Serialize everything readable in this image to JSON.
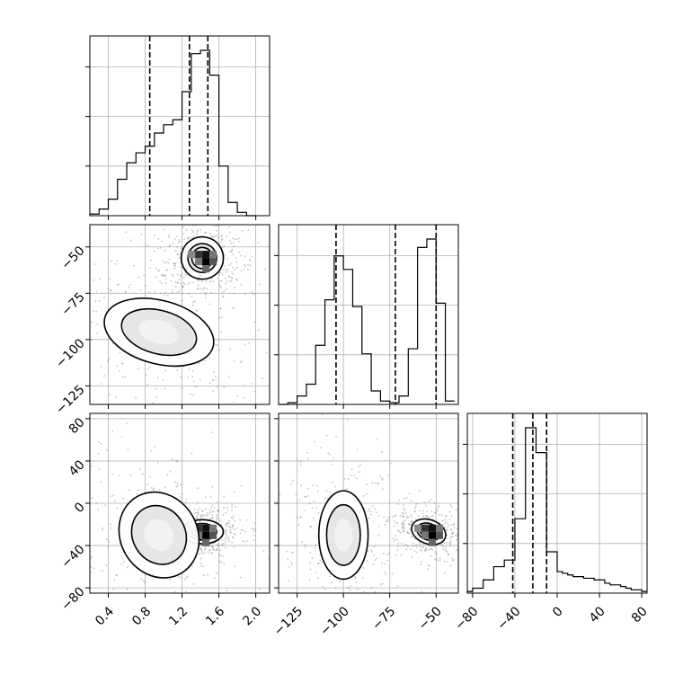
{
  "chart_data": {
    "type": "corner",
    "parameters": [
      {
        "ticks": [
          "0.4",
          "0.8",
          "1.2",
          "1.6",
          "2.0"
        ],
        "tick_values": [
          0.4,
          0.8,
          1.2,
          1.6,
          2.0
        ],
        "range": [
          0.2,
          2.15
        ]
      },
      {
        "ticks": [
          "−125",
          "−100",
          "−75",
          "−50"
        ],
        "tick_values": [
          -125,
          -100,
          -75,
          -50
        ],
        "range": [
          -135,
          -38
        ]
      },
      {
        "ticks": [
          "−80",
          "−40",
          "0",
          "40",
          "80"
        ],
        "tick_values": [
          -80,
          -40,
          0,
          40,
          80
        ],
        "range": [
          -85,
          85
        ]
      }
    ],
    "marginals": [
      {
        "parameter": 0,
        "bin_edges": [
          0.2,
          0.3,
          0.4,
          0.5,
          0.6,
          0.7,
          0.8,
          0.9,
          1.0,
          1.1,
          1.2,
          1.3,
          1.4,
          1.5,
          1.6,
          1.7,
          1.8,
          1.9,
          2.0
        ],
        "counts": [
          0.01,
          0.04,
          0.1,
          0.22,
          0.32,
          0.38,
          0.42,
          0.5,
          0.55,
          0.58,
          0.75,
          0.98,
          1.0,
          0.85,
          0.3,
          0.08,
          0.02,
          0.0
        ],
        "quantiles": [
          0.85,
          1.28,
          1.48
        ]
      },
      {
        "parameter": 1,
        "bin_edges": [
          -135,
          -130,
          -125,
          -120,
          -115,
          -110,
          -105,
          -100,
          -95,
          -90,
          -85,
          -80,
          -75,
          -70,
          -65,
          -60,
          -55,
          -50,
          -45,
          -40
        ],
        "counts": [
          0.0,
          0.01,
          0.05,
          0.12,
          0.35,
          0.62,
          0.88,
          0.8,
          0.58,
          0.3,
          0.08,
          0.02,
          0.01,
          0.05,
          0.33,
          0.93,
          0.98,
          0.6,
          0.02
        ],
        "quantiles": [
          -104,
          -72,
          -50
        ]
      },
      {
        "parameter": 2,
        "bin_edges": [
          -85,
          -80,
          -75,
          -70,
          -65,
          -60,
          -55,
          -50,
          -45,
          -40,
          -35,
          -30,
          -25,
          -20,
          -15,
          -10,
          -5,
          0,
          5,
          10,
          15,
          20,
          25,
          30,
          35,
          40,
          45,
          50,
          55,
          60,
          65,
          70,
          75,
          80,
          85
        ],
        "counts": [
          0.01,
          0.03,
          0.03,
          0.08,
          0.08,
          0.16,
          0.16,
          0.2,
          0.2,
          0.45,
          0.45,
          1.0,
          1.0,
          0.85,
          0.85,
          0.25,
          0.25,
          0.13,
          0.12,
          0.11,
          0.1,
          0.1,
          0.09,
          0.09,
          0.08,
          0.08,
          0.06,
          0.05,
          0.05,
          0.04,
          0.03,
          0.02,
          0.02,
          0.01
        ],
        "quantiles": [
          -42,
          -23,
          -10
        ]
      }
    ],
    "joint_modes": [
      {
        "pair": [
          0,
          1
        ],
        "modes": [
          {
            "center": [
              1.42,
              -56
            ],
            "spread": [
              0.12,
              6
            ],
            "weight": 1.0,
            "tilt": -35
          },
          {
            "center": [
              0.95,
              -96
            ],
            "spread": [
              0.32,
              9
            ],
            "weight": 0.55,
            "tilt": 15
          }
        ]
      },
      {
        "pair": [
          0,
          2
        ],
        "modes": [
          {
            "center": [
              1.42,
              -27
            ],
            "spread": [
              0.12,
              6
            ],
            "weight": 1.0,
            "tilt": 0
          },
          {
            "center": [
              0.95,
              -30
            ],
            "spread": [
              0.22,
              22
            ],
            "weight": 0.5,
            "tilt": -30
          }
        ]
      },
      {
        "pair": [
          1,
          2
        ],
        "modes": [
          {
            "center": [
              -54,
              -27
            ],
            "spread": [
              5,
              6
            ],
            "weight": 1.0,
            "tilt": 20
          },
          {
            "center": [
              -100,
              -30
            ],
            "spread": [
              7,
              22
            ],
            "weight": 0.5,
            "tilt": 0
          }
        ]
      }
    ]
  }
}
